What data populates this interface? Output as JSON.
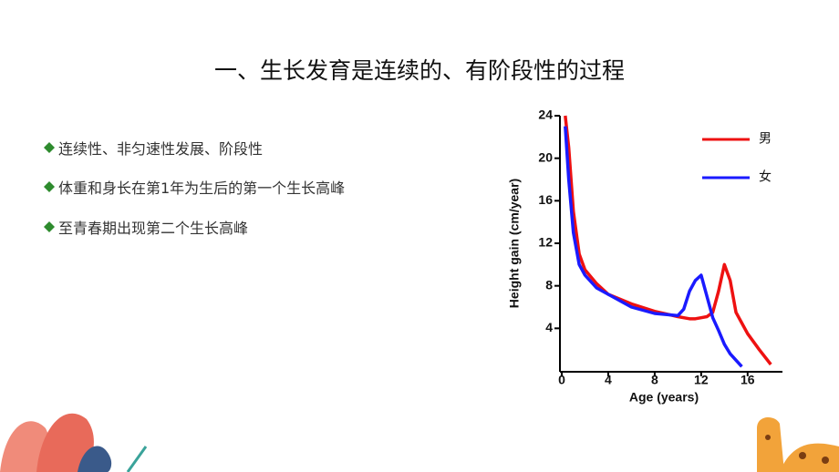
{
  "slide": {
    "title": "一、生长发育是连续的、有阶段性的过程",
    "bullets": [
      "连续性、非匀速性发展、阶段性",
      "体重和身长在第1年为生后的第一个生长高峰",
      "至青春期出现第二个生长高峰"
    ]
  },
  "chart_data": {
    "type": "line",
    "xlabel": "Age (years)",
    "ylabel": "Height gain (cm/year)",
    "x": [
      0.3,
      0.6,
      1,
      1.5,
      2,
      3,
      4,
      6,
      8,
      10,
      10.5,
      11,
      11.5,
      12,
      12.5,
      13,
      13.5,
      14,
      14.5,
      15,
      15.5,
      16,
      17,
      18
    ],
    "series": [
      {
        "name": "男",
        "color": "#ee1111",
        "values": [
          24,
          21,
          15,
          11,
          9.5,
          8.2,
          7.2,
          6.3,
          5.6,
          5.1,
          5.0,
          4.9,
          4.9,
          5.0,
          5.1,
          5.5,
          7.5,
          10,
          8.5,
          5.5,
          4.5,
          3.5,
          2,
          0.6
        ]
      },
      {
        "name": "女",
        "color": "#1a1aff",
        "values": [
          23,
          18,
          13,
          10,
          9,
          7.8,
          7.2,
          6.0,
          5.4,
          5.2,
          5.8,
          7.5,
          8.5,
          9,
          7,
          5,
          3.8,
          2.5,
          1.6,
          1,
          0.4,
          null,
          null,
          null
        ]
      }
    ],
    "xlim": [
      0,
      19
    ],
    "ylim": [
      0,
      24
    ],
    "xticks": [
      0,
      4,
      8,
      12,
      16
    ],
    "yticks": [
      4,
      8,
      12,
      16,
      20,
      24
    ]
  }
}
